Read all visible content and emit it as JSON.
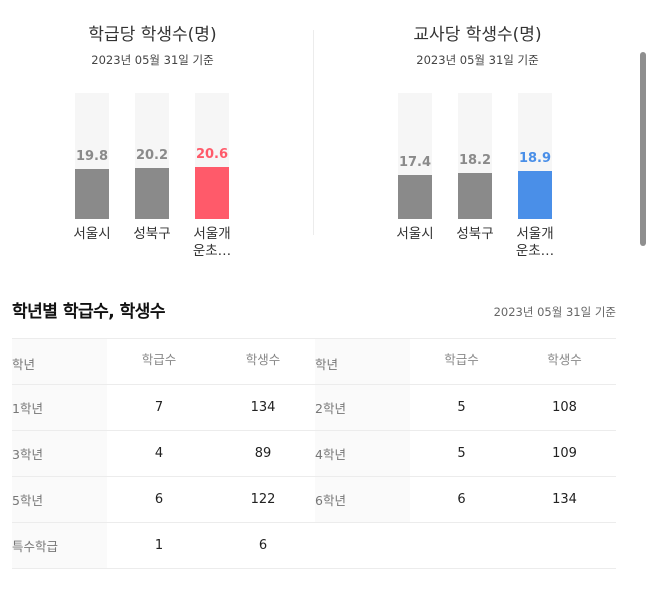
{
  "charts": [
    {
      "title": "학급당 학생수(명)",
      "subtitle": "2023년 05월 31일 기준",
      "bars": [
        {
          "label_line1": "서울시",
          "label_line2": "",
          "value": "19.8",
          "highlight": false
        },
        {
          "label_line1": "성북구",
          "label_line2": "",
          "value": "20.2",
          "highlight": false
        },
        {
          "label_line1": "서울개",
          "label_line2": "운초…",
          "value": "20.6",
          "highlight": true
        }
      ],
      "highlight_color": "#ff5a6a"
    },
    {
      "title": "교사당 학생수(명)",
      "subtitle": "2023년 05월 31일 기준",
      "bars": [
        {
          "label_line1": "서울시",
          "label_line2": "",
          "value": "17.4",
          "highlight": false
        },
        {
          "label_line1": "성북구",
          "label_line2": "",
          "value": "18.2",
          "highlight": false
        },
        {
          "label_line1": "서울개",
          "label_line2": "운초…",
          "value": "18.9",
          "highlight": true
        }
      ],
      "highlight_color": "#4a8fe8"
    }
  ],
  "bar_base_color": "#8a8a8a",
  "chart_data": [
    {
      "type": "bar",
      "title": "학급당 학생수(명)",
      "categories": [
        "서울시",
        "성북구",
        "서울개운초…"
      ],
      "values": [
        19.8,
        20.2,
        20.6
      ]
    },
    {
      "type": "bar",
      "title": "교사당 학생수(명)",
      "categories": [
        "서울시",
        "성북구",
        "서울개운초…"
      ],
      "values": [
        17.4,
        18.2,
        18.9
      ]
    }
  ],
  "section": {
    "title": "학년별 학급수, 학생수",
    "date": "2023년 05월 31일 기준"
  },
  "table": {
    "headers": {
      "grade": "학년",
      "classes": "학급수",
      "students": "학생수"
    },
    "rows": [
      {
        "g1": "1학년",
        "c1": "7",
        "s1": "134",
        "g2": "2학년",
        "c2": "5",
        "s2": "108"
      },
      {
        "g1": "3학년",
        "c1": "4",
        "s1": "89",
        "g2": "4학년",
        "c2": "5",
        "s2": "109"
      },
      {
        "g1": "5학년",
        "c1": "6",
        "s1": "122",
        "g2": "6학년",
        "c2": "6",
        "s2": "134"
      },
      {
        "g1": "특수학급",
        "c1": "1",
        "s1": "6",
        "g2": "",
        "c2": "",
        "s2": ""
      }
    ]
  }
}
